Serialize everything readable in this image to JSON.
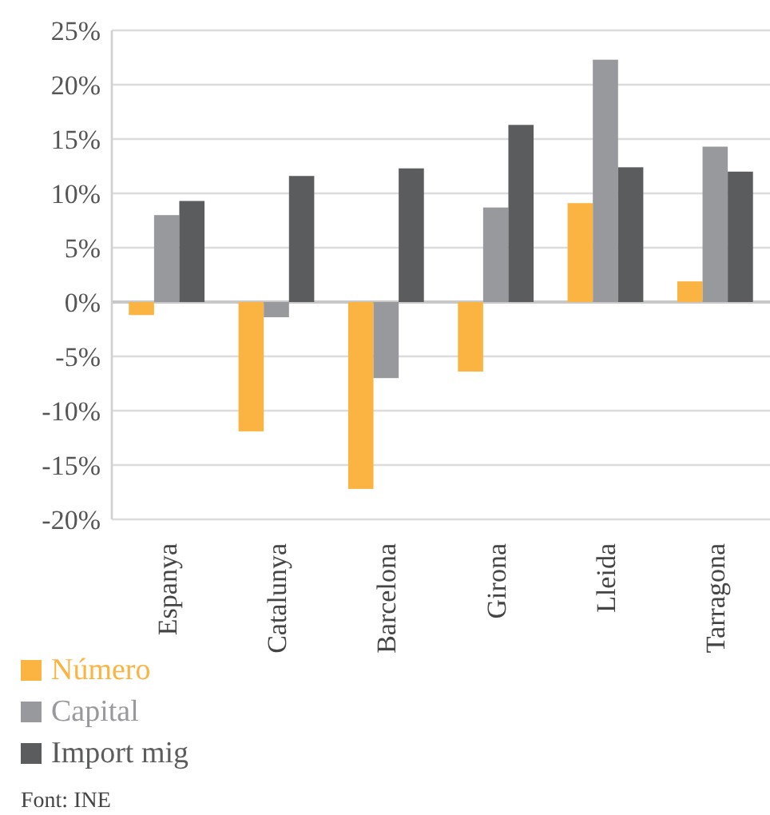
{
  "chart_data": {
    "type": "bar",
    "categories": [
      "Espanya",
      "Catalunya",
      "Barcelona",
      "Girona",
      "Lleida",
      "Tarragona"
    ],
    "series": [
      {
        "name": "Número",
        "color": "#fbb441",
        "values": [
          -1.2,
          -11.9,
          -17.2,
          -6.4,
          9.1,
          1.9
        ]
      },
      {
        "name": "Capital",
        "color": "#98999c",
        "values": [
          8.0,
          -1.4,
          -7.0,
          8.7,
          22.3,
          14.3
        ]
      },
      {
        "name": "Import mig",
        "color": "#5b5c5e",
        "values": [
          9.3,
          11.6,
          12.3,
          16.3,
          12.4,
          12.0
        ]
      }
    ],
    "ylim": [
      -20,
      25
    ],
    "yticks": [
      {
        "value": -20,
        "label": "-20%"
      },
      {
        "value": -15,
        "label": "-15%"
      },
      {
        "value": -10,
        "label": "-10%"
      },
      {
        "value": -5,
        "label": "-5%"
      },
      {
        "value": 0,
        "label": "0%"
      },
      {
        "value": 5,
        "label": "5%"
      },
      {
        "value": 10,
        "label": "10%"
      },
      {
        "value": 15,
        "label": "15%"
      },
      {
        "value": 20,
        "label": "20%"
      },
      {
        "value": 25,
        "label": "25%"
      }
    ],
    "grid": "y",
    "legend": "bottom left",
    "annotations": [
      "Font: INE"
    ]
  }
}
